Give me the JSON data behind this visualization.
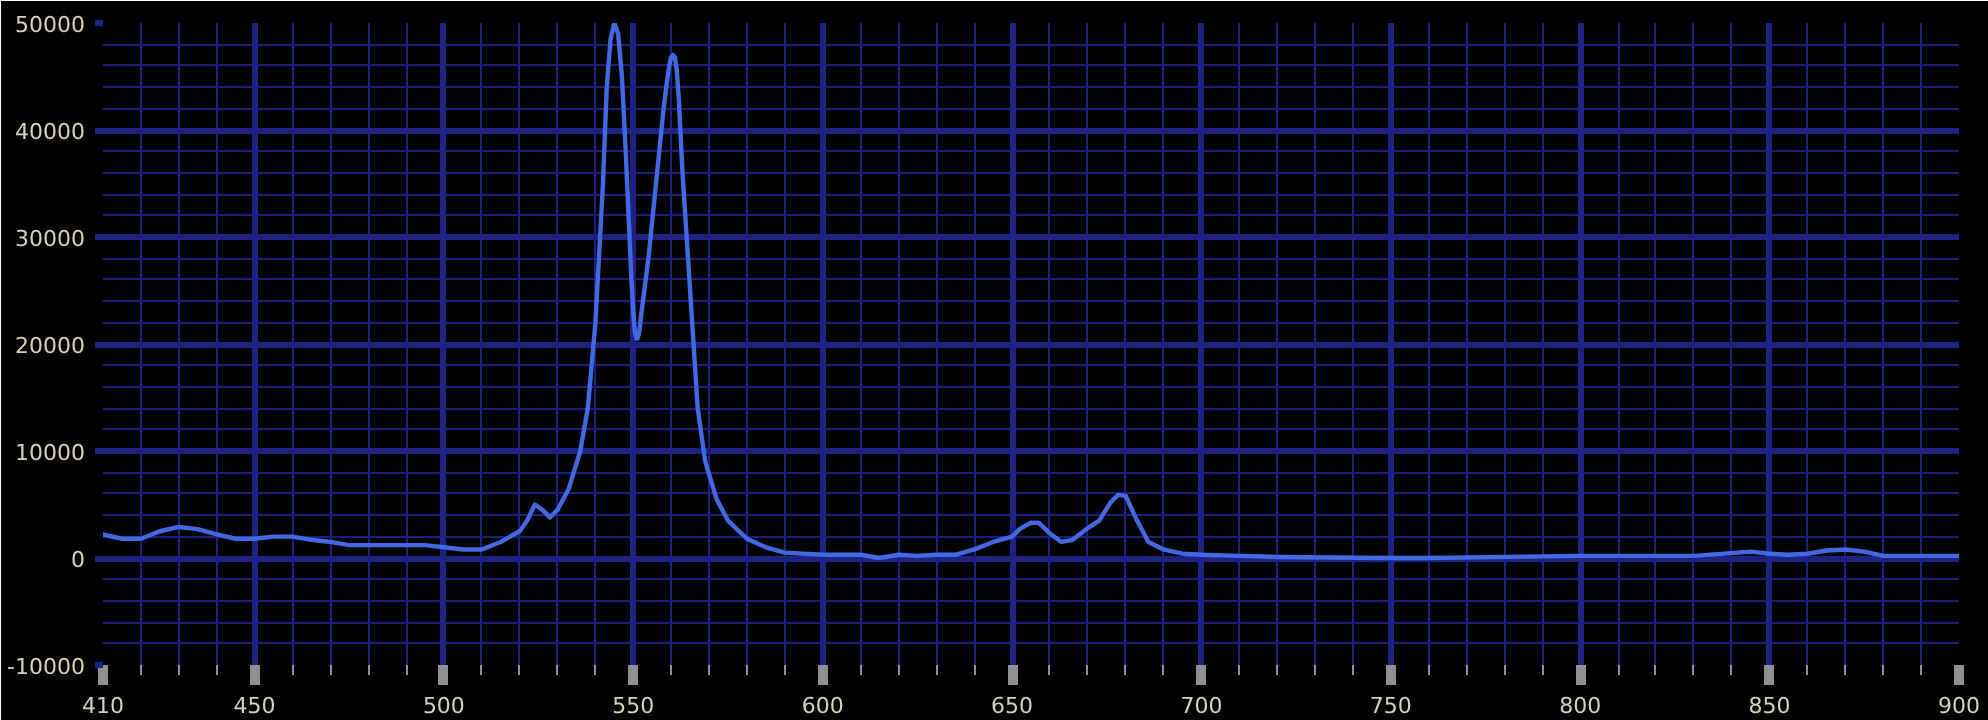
{
  "chart_data": {
    "type": "line",
    "x": [
      410,
      415,
      420,
      425,
      430,
      435,
      440,
      445,
      450,
      455,
      460,
      465,
      470,
      475,
      480,
      490,
      495,
      500,
      505,
      510,
      515,
      520,
      522,
      524,
      526,
      528,
      530,
      533,
      536,
      538,
      540,
      542,
      543,
      544,
      545,
      546,
      547,
      548,
      549,
      549.5,
      550,
      550.25,
      550.5,
      550.75,
      550.9,
      551.1,
      551.25,
      551.5,
      551.75,
      552,
      554,
      556,
      558,
      559,
      559.5,
      560,
      560.5,
      561,
      561.5,
      562,
      563,
      565,
      567,
      569,
      572,
      575,
      580,
      585,
      590,
      600,
      610,
      615,
      620,
      625,
      630,
      635,
      640,
      645,
      650,
      652,
      655,
      657,
      660,
      663,
      666,
      670,
      673,
      676,
      678,
      680,
      683,
      686,
      690,
      695,
      700,
      710,
      720,
      750,
      760,
      800,
      830,
      845,
      850,
      855,
      860,
      865,
      870,
      875,
      880,
      900
    ],
    "series": [
      {
        "color": "#4169e1",
        "values": [
          2200,
          1800,
          1800,
          2500,
          2900,
          2700,
          2200,
          1800,
          1800,
          2000,
          2000,
          1700,
          1500,
          1200,
          1200,
          1200,
          1200,
          1000,
          800,
          800,
          1500,
          2500,
          3500,
          5000,
          4500,
          3800,
          4500,
          6500,
          10000,
          14000,
          22000,
          35000,
          44000,
          48500,
          50000,
          49000,
          45000,
          38000,
          30000,
          26000,
          23000,
          21800,
          21000,
          20700,
          20500,
          20500,
          20700,
          21000,
          21600,
          22500,
          28000,
          35000,
          42000,
          44800,
          46000,
          46800,
          47000,
          46800,
          45500,
          43000,
          36000,
          25000,
          14000,
          9000,
          5500,
          3500,
          1800,
          1000,
          500,
          300,
          300,
          0,
          300,
          200,
          300,
          300,
          800,
          1500,
          2000,
          2700,
          3300,
          3300,
          2300,
          1500,
          1700,
          2800,
          3500,
          5200,
          5900,
          5800,
          3500,
          1500,
          800,
          400,
          300,
          200,
          100,
          0,
          0,
          200,
          200,
          600,
          400,
          300,
          400,
          700,
          800,
          600,
          200,
          200
        ]
      }
    ],
    "xlim": [
      410,
      900
    ],
    "ylim": [
      -10000,
      50000
    ],
    "xticks": [
      410,
      {
        "value": 420,
        "label": null
      },
      {
        "value": 430,
        "label": null
      },
      {
        "value": 440,
        "label": null
      },
      450,
      {
        "value": 460,
        "label": null
      },
      {
        "value": 470,
        "label": null
      },
      {
        "value": 480,
        "label": null
      },
      {
        "value": 490,
        "label": null
      },
      500,
      {
        "value": 510,
        "label": null
      },
      {
        "value": 520,
        "label": null
      },
      {
        "value": 530,
        "label": null
      },
      {
        "value": 540,
        "label": null
      },
      550,
      {
        "value": 560,
        "label": null
      },
      {
        "value": 570,
        "label": null
      },
      {
        "value": 580,
        "label": null
      },
      {
        "value": 590,
        "label": null
      },
      600,
      {
        "value": 610,
        "label": null
      },
      {
        "value": 620,
        "label": null
      },
      {
        "value": 630,
        "label": null
      },
      {
        "value": 640,
        "label": null
      },
      650,
      {
        "value": 660,
        "label": null
      },
      {
        "value": 670,
        "label": null
      },
      {
        "value": 680,
        "label": null
      },
      {
        "value": 690,
        "label": null
      },
      700,
      {
        "value": 710,
        "label": null
      },
      {
        "value": 720,
        "label": null
      },
      {
        "value": 730,
        "label": null
      },
      {
        "value": 740,
        "label": null
      },
      750,
      {
        "value": 760,
        "label": null
      },
      {
        "value": 770,
        "label": null
      },
      {
        "value": 780,
        "label": null
      },
      {
        "value": 790,
        "label": null
      },
      800,
      {
        "value": 810,
        "label": null
      },
      {
        "value": 820,
        "label": null
      },
      {
        "value": 830,
        "label": null
      },
      {
        "value": 840,
        "label": null
      },
      850,
      {
        "value": 860,
        "label": null
      },
      {
        "value": 870,
        "label": null
      },
      {
        "value": 880,
        "label": null
      },
      {
        "value": 890,
        "label": null
      },
      900
    ],
    "yticks": [
      -10000,
      {
        "value": -8000,
        "label": null
      },
      {
        "value": -6000,
        "label": null
      },
      {
        "value": -4000,
        "label": null
      },
      {
        "value": -2000,
        "label": null
      },
      0,
      {
        "value": 2000,
        "label": null
      },
      {
        "value": 4000,
        "label": null
      },
      {
        "value": 6000,
        "label": null
      },
      {
        "value": 8000,
        "label": null
      },
      10000,
      {
        "value": 12000,
        "label": null
      },
      {
        "value": 14000,
        "label": null
      },
      {
        "value": 16000,
        "label": null
      },
      {
        "value": 18000,
        "label": null
      },
      20000,
      {
        "value": 22000,
        "label": null
      },
      {
        "value": 24000,
        "label": null
      },
      {
        "value": 26000,
        "label": null
      },
      {
        "value": 28000,
        "label": null
      },
      30000,
      {
        "value": 32000,
        "label": null
      },
      {
        "value": 34000,
        "label": null
      },
      {
        "value": 36000,
        "label": null
      },
      {
        "value": 38000,
        "label": null
      },
      40000,
      {
        "value": 42000,
        "label": null
      },
      {
        "value": 44000,
        "label": null
      },
      {
        "value": 46000,
        "label": null
      },
      {
        "value": 48000,
        "label": null
      },
      50000
    ],
    "grid": true,
    "marker": "none",
    "line_style": "solid"
  }
}
